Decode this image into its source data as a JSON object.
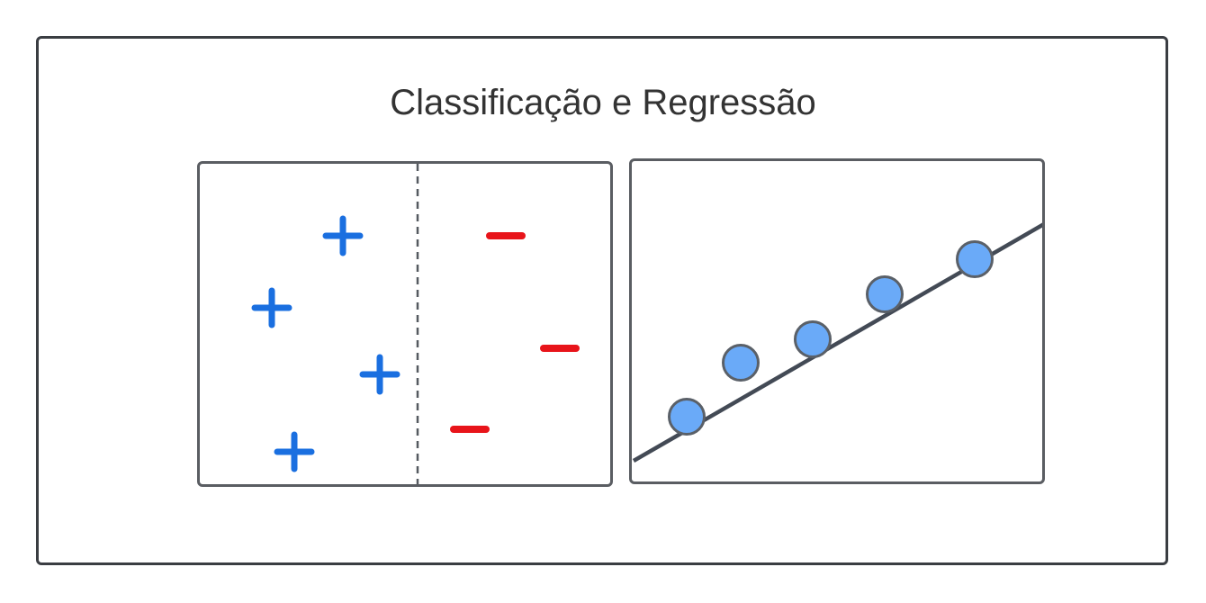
{
  "title": "Classificação e Regressão",
  "colors": {
    "frame": "#3a3d42",
    "panel_border": "#5a5d62",
    "plus": "#1a6fe0",
    "minus": "#e8141a",
    "point_fill": "#6aaaf8",
    "point_stroke": "#5a6068",
    "line": "#434a55"
  },
  "classification": {
    "positive_symbol": "+",
    "negative_symbol": "−",
    "positive_count": 4,
    "negative_count": 3
  },
  "regression": {
    "point_count": 5
  }
}
